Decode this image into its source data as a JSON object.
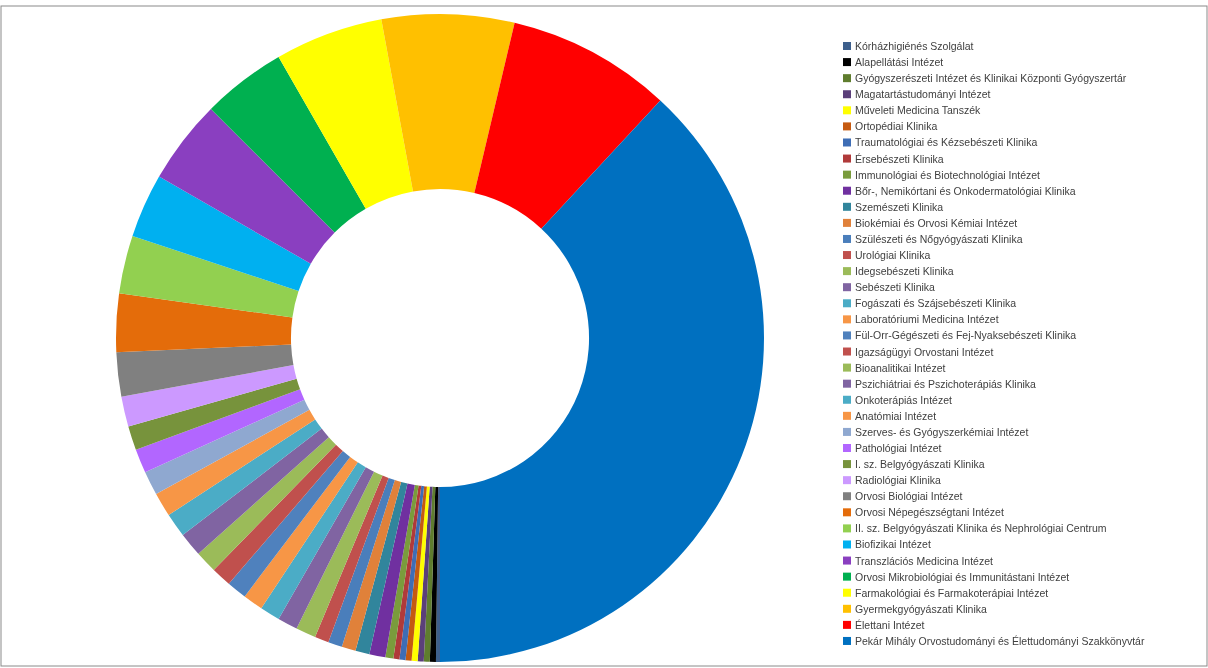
{
  "chart_data": {
    "type": "donut",
    "legend": "right",
    "categories": [
      "Kórházhigiénés Szolgálat",
      "Alapellátási Intézet",
      "Gyógyszerészeti Intézet és Klinikai Központi Gyógyszertár",
      "Magatartástudományi Intézet",
      "Műveleti Medicina Tanszék",
      "Ortopédiai Klinika",
      "Traumatológiai és Kézsebészeti Klinika",
      "Érsebészeti Klinika",
      "Immunológiai és Biotechnológiai Intézet",
      "Bőr-, Nemikórtani és Onkodermatológiai Klinika",
      "Szemészeti Klinika",
      "Biokémiai és Orvosi Kémiai Intézet",
      "Szülészeti és Nőgyógyászati Klinika",
      "Urológiai Klinika",
      "Idegsebészeti Klinika",
      "Sebészeti Klinika",
      "Fogászati és Szájsebészeti Klinika",
      "Laboratóriumi Medicina Intézet",
      "Fül-Orr-Gégészeti és Fej-Nyaksebészeti Klinika",
      "Igazságügyi Orvostani Intézet",
      "Bioanalitikai Intézet",
      "Pszichiátriai és Pszichoterápiás Klinika",
      "Onkoterápiás Intézet",
      "Anatómiai Intézet",
      "Szerves- és Gyógyszerkémiai Intézet",
      "Pathológiai Intézet",
      "I. sz. Belgyógyászati Klinika",
      "Radiológiai Klinika",
      "Orvosi Biológiai Intézet",
      "Orvosi Népegészségtani Intézet",
      "II. sz. Belgyógyászati Klinika és Nephrológiai Centrum",
      "Biofizikai Intézet",
      "Transzlációs Medicina Intézet",
      "Orvosi Mikrobiológiai és Immunitástani Intézet",
      "Farmakológiai és Farmakoterápiai Intézet",
      "Gyermekgyógyászati Klinika",
      "Élettani Intézet",
      "Pekár Mihály Orvostudományi és Élettudományi Szakkönyvtár"
    ],
    "values": [
      0.2,
      0.3,
      0.3,
      0.3,
      0.3,
      0.3,
      0.3,
      0.3,
      0.4,
      0.8,
      0.7,
      0.7,
      0.7,
      0.7,
      1.0,
      1.0,
      1.0,
      1.0,
      1.0,
      1.0,
      1.1,
      1.2,
      1.2,
      1.2,
      1.2,
      1.2,
      1.2,
      1.5,
      2.2,
      2.9,
      2.9,
      3.2,
      4.2,
      4.2,
      5.4,
      6.6,
      8.2,
      38.1
    ],
    "colors": [
      "#3d5f8c",
      "#000000",
      "#5f7d2e",
      "#5b3f7a",
      "#ffff00",
      "#c55a11",
      "#3e6db5",
      "#b03a3a",
      "#7a9c3c",
      "#7030a0",
      "#31859c",
      "#e0813a",
      "#4a7ebb",
      "#c0504d",
      "#9bbb59",
      "#8064a2",
      "#4bacc6",
      "#f79646",
      "#4f81bd",
      "#c0504d",
      "#9bbb59",
      "#8064a2",
      "#4bacc6",
      "#f79646",
      "#8fa8d0",
      "#b266ff",
      "#77933c",
      "#cc99ff",
      "#808080",
      "#e46c0a",
      "#92d050",
      "#00b0f0",
      "#8a3fc0",
      "#00b050",
      "#ffff00",
      "#ffc000",
      "#ff0000",
      "#0070c0"
    ]
  }
}
